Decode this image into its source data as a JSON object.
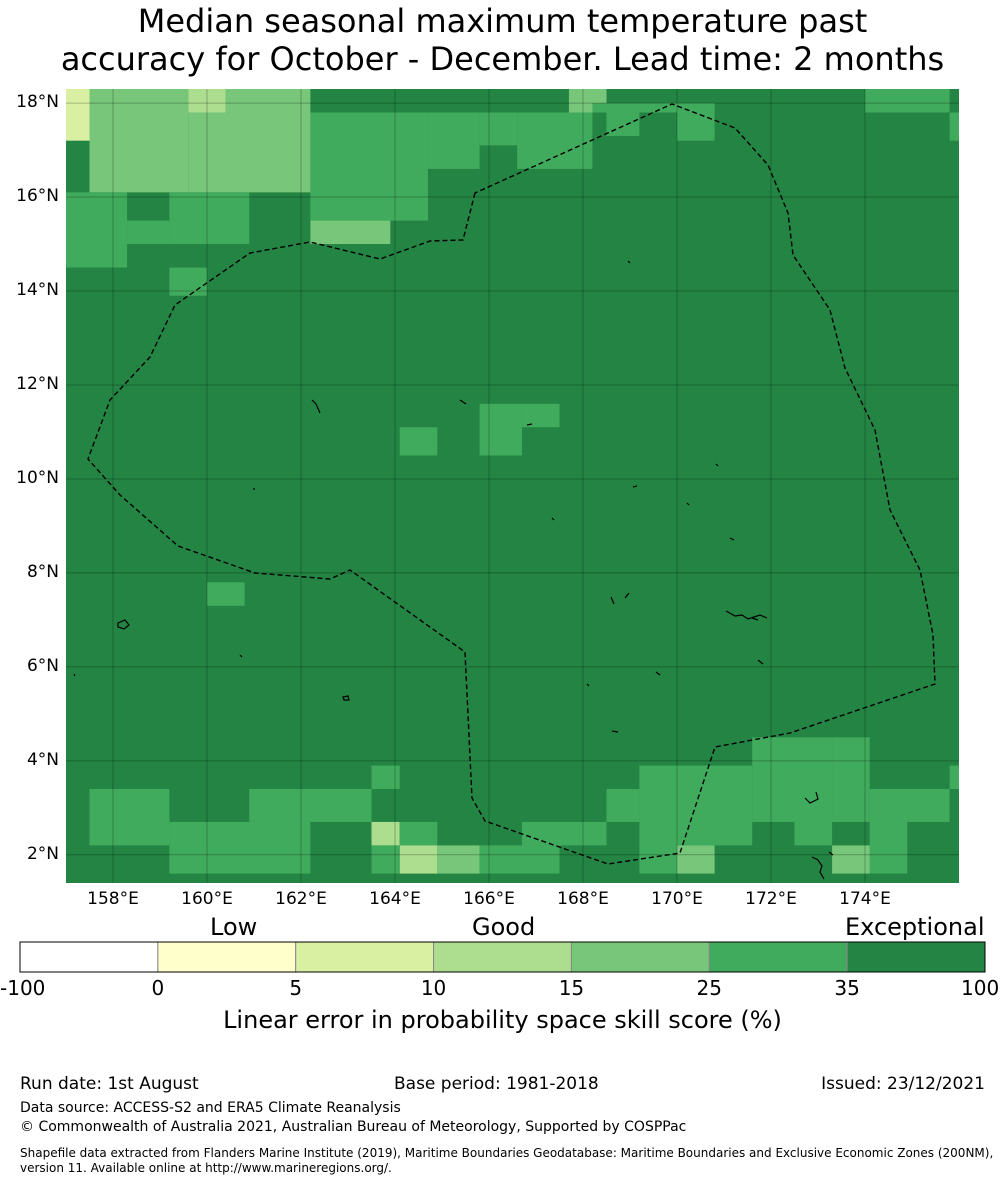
{
  "title_line1": "Median seasonal maximum temperature past",
  "title_line2": "accuracy for October - December. Lead time: 2 months",
  "map": {
    "lon_min": 157,
    "lon_max": 176,
    "lat_min": 1.4,
    "lat_max": 18.3,
    "x_ticks": [
      "158°E",
      "160°E",
      "162°E",
      "164°E",
      "166°E",
      "168°E",
      "170°E",
      "172°E",
      "174°E"
    ],
    "x_tick_values": [
      158,
      160,
      162,
      164,
      166,
      168,
      170,
      172,
      174
    ],
    "y_ticks": [
      "18°N",
      "16°N",
      "14°N",
      "12°N",
      "10°N",
      "8°N",
      "6°N",
      "4°N",
      "2°N"
    ],
    "y_tick_values": [
      18,
      16,
      14,
      12,
      10,
      8,
      6,
      4,
      2
    ],
    "background_class": 6,
    "class_colors": [
      "#ffffff",
      "#ffffcc",
      "#d9f0a3",
      "#addd8e",
      "#78c679",
      "#41ab5d",
      "#238443"
    ],
    "cells": [
      [
        157.0,
        17.2,
        157.5,
        18.3,
        2
      ],
      [
        157.5,
        16.1,
        159.6,
        18.3,
        4
      ],
      [
        159.6,
        17.8,
        160.4,
        18.3,
        3
      ],
      [
        159.6,
        16.1,
        161.5,
        17.8,
        4
      ],
      [
        160.4,
        17.8,
        162.2,
        18.3,
        4
      ],
      [
        161.5,
        16.1,
        162.2,
        17.8,
        4
      ],
      [
        162.2,
        15.5,
        164.7,
        17.8,
        5
      ],
      [
        164.7,
        16.6,
        165.8,
        17.8,
        5
      ],
      [
        165.8,
        17.1,
        166.6,
        17.8,
        5
      ],
      [
        166.6,
        16.6,
        168.2,
        17.8,
        5
      ],
      [
        167.7,
        17.8,
        168.5,
        18.3,
        4
      ],
      [
        168.2,
        17.8,
        170.0,
        18.0,
        5
      ],
      [
        168.5,
        17.3,
        169.2,
        17.8,
        5
      ],
      [
        170.0,
        17.2,
        170.8,
        18.0,
        5
      ],
      [
        174.0,
        17.8,
        175.8,
        18.3,
        5
      ],
      [
        175.8,
        17.2,
        176.0,
        17.8,
        5
      ],
      [
        157.0,
        14.5,
        158.3,
        16.1,
        5
      ],
      [
        158.3,
        16.1,
        159.2,
        16.1,
        5
      ],
      [
        159.2,
        15.0,
        160.9,
        16.1,
        5
      ],
      [
        158.3,
        15.0,
        159.2,
        15.5,
        5
      ],
      [
        162.2,
        15.0,
        163.9,
        15.5,
        4
      ],
      [
        162.2,
        15.5,
        163.9,
        16.1,
        5
      ],
      [
        163.9,
        15.5,
        164.7,
        16.1,
        5
      ],
      [
        159.2,
        13.9,
        160.0,
        14.5,
        5
      ],
      [
        160.0,
        7.3,
        160.8,
        7.8,
        5
      ],
      [
        164.1,
        10.5,
        164.9,
        11.1,
        5
      ],
      [
        165.8,
        10.5,
        166.7,
        11.6,
        5
      ],
      [
        166.7,
        11.1,
        167.5,
        11.6,
        5
      ],
      [
        157.5,
        2.2,
        159.2,
        3.4,
        5
      ],
      [
        159.2,
        2.2,
        159.2,
        2.7,
        4
      ],
      [
        159.2,
        1.6,
        162.2,
        2.7,
        5
      ],
      [
        160.9,
        2.7,
        163.5,
        3.4,
        5
      ],
      [
        163.5,
        3.4,
        164.1,
        3.9,
        5
      ],
      [
        163.5,
        2.2,
        164.1,
        2.7,
        3
      ],
      [
        164.1,
        2.2,
        164.9,
        2.7,
        5
      ],
      [
        164.1,
        1.6,
        164.9,
        2.2,
        3
      ],
      [
        164.9,
        1.6,
        165.8,
        2.2,
        4
      ],
      [
        165.8,
        1.6,
        167.5,
        2.2,
        5
      ],
      [
        166.7,
        2.2,
        168.5,
        2.7,
        5
      ],
      [
        168.5,
        2.7,
        169.2,
        3.4,
        5
      ],
      [
        169.2,
        1.6,
        170.0,
        3.9,
        5
      ],
      [
        170.0,
        1.6,
        170.8,
        2.2,
        4
      ],
      [
        170.0,
        2.2,
        171.6,
        3.9,
        5
      ],
      [
        171.6,
        2.7,
        173.3,
        4.5,
        5
      ],
      [
        173.3,
        2.7,
        174.1,
        4.5,
        5
      ],
      [
        174.1,
        2.7,
        175.8,
        3.4,
        5
      ],
      [
        174.1,
        1.6,
        174.9,
        2.7,
        5
      ],
      [
        173.3,
        1.6,
        174.1,
        2.2,
        4
      ],
      [
        175.8,
        3.4,
        176.0,
        3.9,
        5
      ],
      [
        163.5,
        1.6,
        164.1,
        2.2,
        5
      ],
      [
        172.5,
        2.2,
        173.3,
        2.7,
        5
      ]
    ]
  },
  "colorbar": {
    "categories": [
      "Low",
      "Good",
      "Exceptional"
    ],
    "boundaries": [
      "-100",
      "0",
      "5",
      "10",
      "15",
      "25",
      "35",
      "100"
    ],
    "colors": [
      "#ffffff",
      "#ffffcc",
      "#d9f0a3",
      "#addd8e",
      "#78c679",
      "#41ab5d",
      "#238443"
    ],
    "label": "Linear error in probability space skill score (%)"
  },
  "footer": {
    "run_date": "Run date: 1st August",
    "base_period": "Base period: 1981-2018",
    "issued": "Issued: 23/12/2021",
    "data_source": "Data source: ACCESS-S2 and ERA5 Climate Reanalysis",
    "copyright": "© Commonwealth of Australia 2021, Australian Bureau of Meteorology, Supported by COSPPac",
    "shapefile": "Shapefile data extracted from Flanders Marine Institute (2019), Maritime Boundaries Geodatabase: Maritime Boundaries and Exclusive Economic Zones (200NM), version 11. Available online at http://www.marineregions.org/."
  }
}
